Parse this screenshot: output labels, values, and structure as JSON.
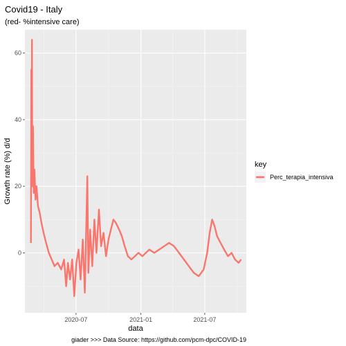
{
  "chart_data": {
    "type": "line",
    "title": "Covid19 - Italy",
    "subtitle": "(red- %intensive care)",
    "xlabel": "data",
    "ylabel": "Growth rate (%) d/d",
    "caption": "giader >>> Data Source: https://github.com/pcm-dpc/COVID-19",
    "x_ticks": [
      "2020-07",
      "2021-01",
      "2021-07"
    ],
    "y_ticks": [
      0,
      20,
      40,
      60
    ],
    "xlim": [
      "2020-02-07",
      "2021-10-27"
    ],
    "ylim": [
      -18,
      67
    ],
    "grid": true,
    "legend": {
      "title": "key",
      "placement": "right"
    },
    "series": [
      {
        "name": "Perc_terapia_intensiva",
        "color": "#F8766D",
        "points": [
          [
            "2020-02-24",
            3
          ],
          [
            "2020-02-25",
            55
          ],
          [
            "2020-02-26",
            30
          ],
          [
            "2020-02-27",
            64
          ],
          [
            "2020-02-28",
            20
          ],
          [
            "2020-03-01",
            38
          ],
          [
            "2020-03-03",
            18
          ],
          [
            "2020-03-05",
            25
          ],
          [
            "2020-03-08",
            16
          ],
          [
            "2020-03-11",
            20
          ],
          [
            "2020-03-15",
            14
          ],
          [
            "2020-03-20",
            12
          ],
          [
            "2020-03-25",
            9
          ],
          [
            "2020-03-31",
            6
          ],
          [
            "2020-04-07",
            3
          ],
          [
            "2020-04-15",
            0
          ],
          [
            "2020-04-23",
            -2
          ],
          [
            "2020-05-01",
            -4
          ],
          [
            "2020-05-10",
            -3
          ],
          [
            "2020-05-20",
            -5
          ],
          [
            "2020-05-28",
            -2
          ],
          [
            "2020-06-03",
            -10
          ],
          [
            "2020-06-08",
            -3
          ],
          [
            "2020-06-14",
            -8
          ],
          [
            "2020-06-20",
            -2
          ],
          [
            "2020-06-26",
            -13
          ],
          [
            "2020-07-02",
            -3
          ],
          [
            "2020-07-08",
            1
          ],
          [
            "2020-07-14",
            -8
          ],
          [
            "2020-07-20",
            4
          ],
          [
            "2020-07-26",
            -12
          ],
          [
            "2020-08-02",
            23
          ],
          [
            "2020-08-05",
            -6
          ],
          [
            "2020-08-10",
            7
          ],
          [
            "2020-08-16",
            -4
          ],
          [
            "2020-08-22",
            10
          ],
          [
            "2020-08-28",
            0
          ],
          [
            "2020-09-04",
            13
          ],
          [
            "2020-09-10",
            2
          ],
          [
            "2020-09-17",
            6
          ],
          [
            "2020-09-24",
            -1
          ],
          [
            "2020-10-01",
            4
          ],
          [
            "2020-10-08",
            7
          ],
          [
            "2020-10-15",
            10
          ],
          [
            "2020-10-22",
            9
          ],
          [
            "2020-10-31",
            7
          ],
          [
            "2020-11-08",
            5
          ],
          [
            "2020-11-16",
            2
          ],
          [
            "2020-11-25",
            -1
          ],
          [
            "2020-12-05",
            -2
          ],
          [
            "2020-12-15",
            -1
          ],
          [
            "2020-12-25",
            0
          ],
          [
            "2021-01-05",
            -1
          ],
          [
            "2021-01-15",
            0
          ],
          [
            "2021-01-25",
            1
          ],
          [
            "2021-02-08",
            0
          ],
          [
            "2021-02-22",
            1
          ],
          [
            "2021-03-08",
            2
          ],
          [
            "2021-03-22",
            3
          ],
          [
            "2021-04-05",
            2
          ],
          [
            "2021-04-19",
            0
          ],
          [
            "2021-05-03",
            -2
          ],
          [
            "2021-05-17",
            -4
          ],
          [
            "2021-05-31",
            -6
          ],
          [
            "2021-06-14",
            -7
          ],
          [
            "2021-06-28",
            -5
          ],
          [
            "2021-07-08",
            0
          ],
          [
            "2021-07-15",
            6
          ],
          [
            "2021-07-22",
            10
          ],
          [
            "2021-07-29",
            8
          ],
          [
            "2021-08-05",
            5
          ],
          [
            "2021-08-15",
            3
          ],
          [
            "2021-08-25",
            1
          ],
          [
            "2021-09-05",
            -1
          ],
          [
            "2021-09-15",
            0
          ],
          [
            "2021-09-25",
            -2
          ],
          [
            "2021-10-05",
            -3
          ],
          [
            "2021-10-12",
            -2
          ]
        ]
      }
    ]
  }
}
